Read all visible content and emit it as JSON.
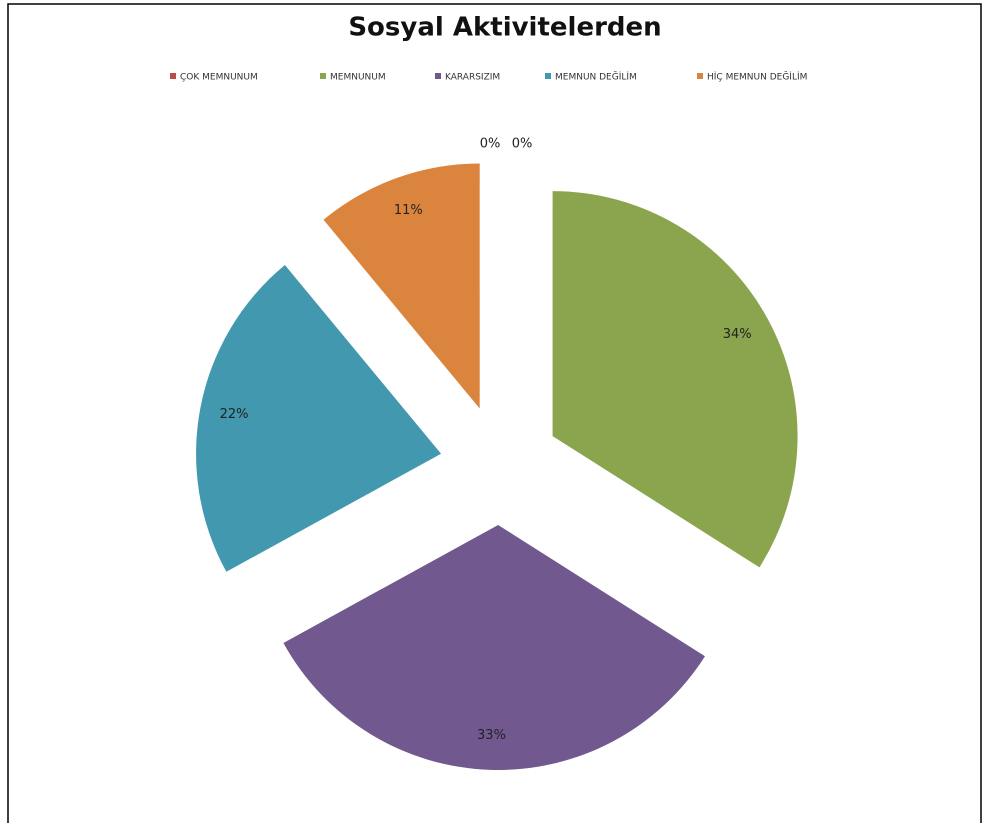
{
  "chart_data": {
    "type": "pie",
    "title": "Sosyal Aktivitelerden",
    "categories": [
      "ÇOK MEMNUNUM",
      "MEMNUNUM",
      "KARARSIZIM",
      "MEMNUN DEĞİLİM",
      "HİÇ MEMNUN DEĞİLİM",
      null
    ],
    "values": [
      0,
      34,
      33,
      22,
      11,
      0
    ],
    "value_labels": [
      "0%",
      "34%",
      "33%",
      "22%",
      "11%",
      "0%"
    ],
    "colors": [
      "#be4b48",
      "#8ba54e",
      "#71588f",
      "#4198af",
      "#db843d",
      "#7f7f7f"
    ],
    "legend": "top"
  }
}
